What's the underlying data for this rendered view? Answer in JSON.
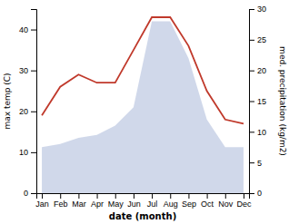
{
  "chart_data": {
    "type": "line",
    "categories": [
      "Jan",
      "Feb",
      "Mar",
      "Apr",
      "May",
      "Jun",
      "Jul",
      "Aug",
      "Sep",
      "Oct",
      "Nov",
      "Dec"
    ],
    "series": [
      {
        "type": "area",
        "color": "#aab8d8",
        "axis": "y2",
        "values": [
          7.5,
          8,
          9,
          9.5,
          11,
          14,
          28,
          28,
          22,
          12,
          7.5,
          7.5
        ]
      },
      {
        "type": "line",
        "color": "#c0392b",
        "values": [
          19,
          26,
          29,
          27,
          27,
          35,
          43,
          43,
          36,
          25,
          18,
          17
        ]
      }
    ],
    "x_label": "date (month)",
    "y_label": "max temp (C)",
    "y2_label": "med. precipitation (kg/m2)",
    "ylim": [
      0,
      45
    ],
    "yticks": [
      0,
      10,
      20,
      30,
      40
    ],
    "y2lim": [
      0,
      30
    ],
    "y2ticks": [
      0,
      5,
      10,
      15,
      20,
      25,
      30
    ],
    "grid": false
  }
}
